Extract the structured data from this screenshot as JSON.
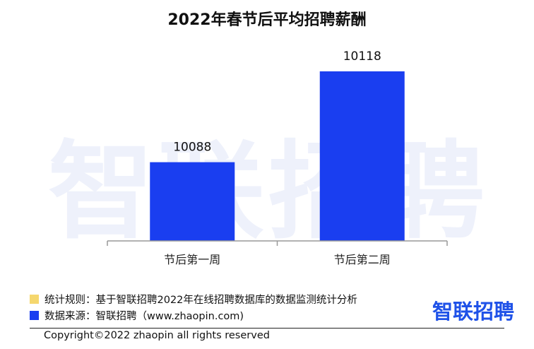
{
  "chart_data": {
    "type": "bar",
    "title": "2022年春节后平均招聘薪酬",
    "categories": [
      "节后第一周",
      "节后第二周"
    ],
    "values": [
      10088,
      10118
    ],
    "data_labels": [
      "10088",
      "10118"
    ],
    "bar_color": "#1a3ef0",
    "axis_color": "#999999",
    "ylim": [
      10062,
      10125
    ],
    "grid": false
  },
  "watermark": "智联招聘",
  "footer": {
    "rule_label": "统计规则：基于智联招聘2022年在线招聘数据库的数据监测统计分析",
    "rule_color": "#f5d76e",
    "source_label": "数据来源：智联招聘（www.zhaopin.com)",
    "source_color": "#1a3ef0",
    "copyright": "Copyright©2022 zhaopin all rights reserved"
  },
  "logo": "智联招聘"
}
